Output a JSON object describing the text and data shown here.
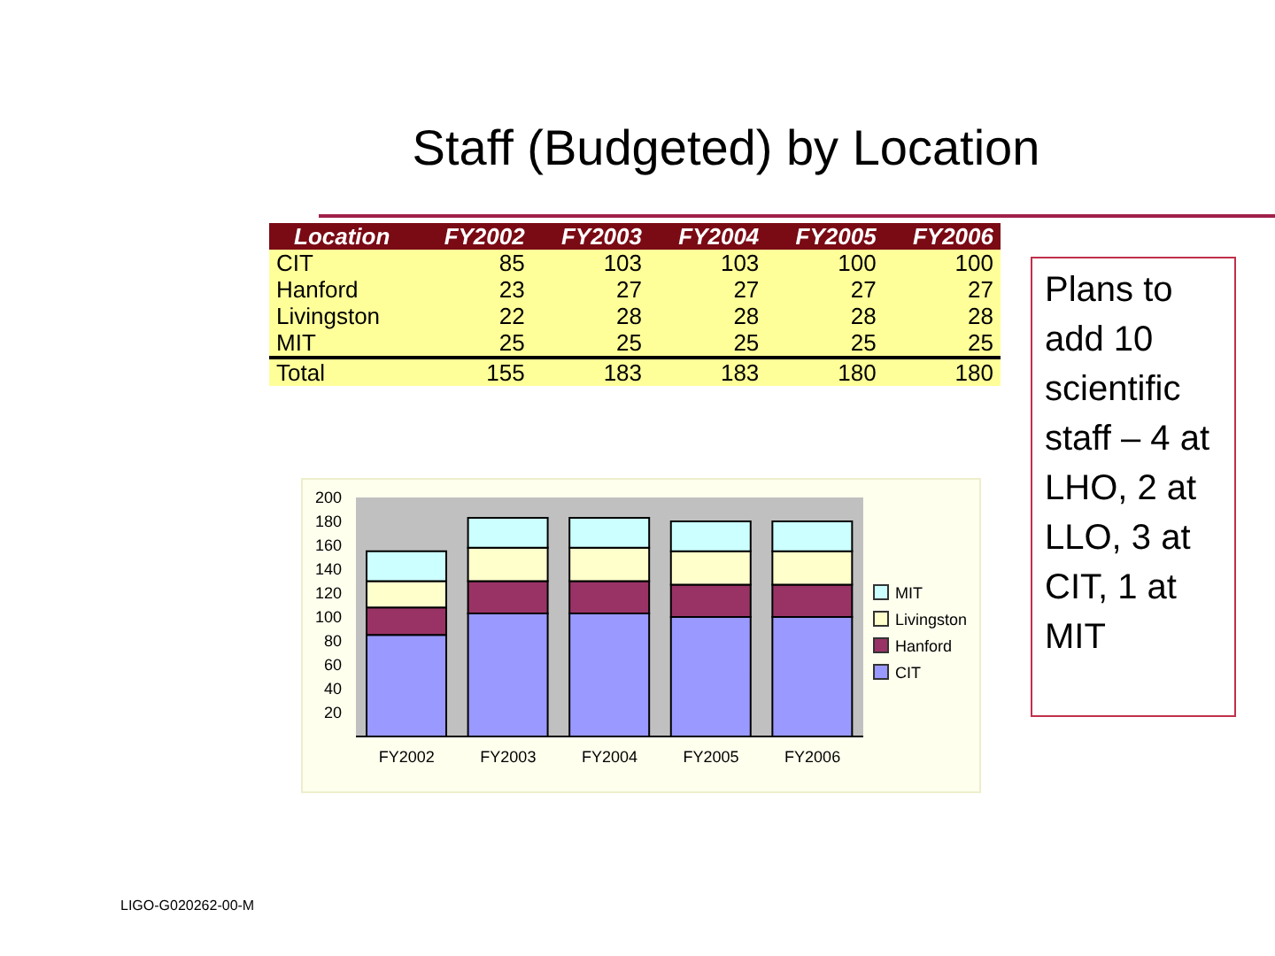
{
  "chart_data": [
    {
      "type": "heatmap",
      "title": "Staff (Budgeted) by Location",
      "ylabel": "Location",
      "categories": [
        "FY2002",
        "FY2003",
        "FY2004",
        "FY2005",
        "FY2006"
      ],
      "y_categories": [
        "CIT",
        "Hanford",
        "Livingston",
        "MIT",
        "Total"
      ],
      "cells": [
        [
          85,
          103,
          103,
          100,
          100
        ],
        [
          23,
          27,
          27,
          27,
          27
        ],
        [
          22,
          28,
          28,
          28,
          28
        ],
        [
          25,
          25,
          25,
          25,
          25
        ],
        [
          155,
          183,
          183,
          180,
          180
        ]
      ],
      "data_labels": true
    },
    {
      "type": "bar",
      "categories": [
        "FY2002",
        "FY2003",
        "FY2004",
        "FY2005",
        "FY2006"
      ],
      "stacked": true,
      "series": [
        {
          "name": "CIT",
          "color": "#9999ff",
          "values": [
            85,
            103,
            103,
            100,
            100
          ]
        },
        {
          "name": "Hanford",
          "color": "#993366",
          "values": [
            23,
            27,
            27,
            27,
            27
          ]
        },
        {
          "name": "Livingston",
          "color": "#ffffcc",
          "values": [
            22,
            28,
            28,
            28,
            28
          ]
        },
        {
          "name": "MIT",
          "color": "#ccffff",
          "values": [
            25,
            25,
            25,
            25,
            25
          ]
        }
      ],
      "ylim": [
        0,
        200
      ],
      "yticks": [
        20,
        40,
        60,
        80,
        100,
        120,
        140,
        160,
        180,
        200
      ],
      "legend": "right",
      "annotations": [
        "Plans to add 10 scientific staff – 4 at LHO, 2 at LLO, 3 at CIT, 1 at MIT",
        "LIGO-G020262-00-M"
      ]
    }
  ]
}
